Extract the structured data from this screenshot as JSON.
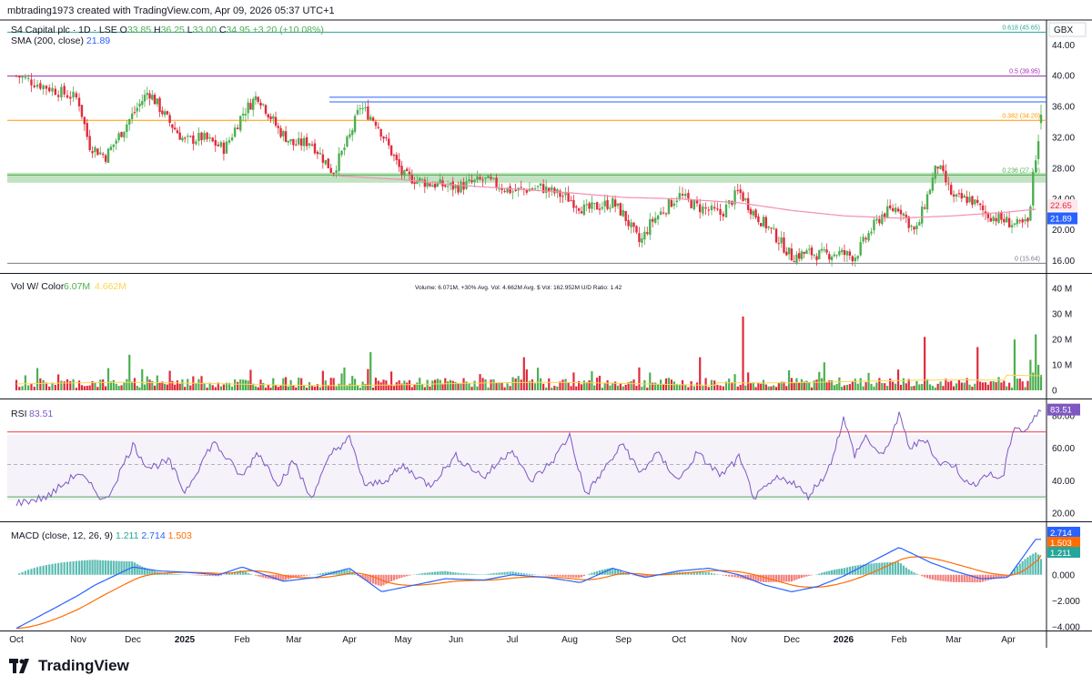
{
  "header": {
    "attribution": "mbtrading1973 created with TradingView.com, Apr 09, 2026 05:37 UTC+1"
  },
  "brand": {
    "logo_text": "TradingView"
  },
  "colors": {
    "up": "#4caf50",
    "down": "#e02b3b",
    "sma200": "#2962ff",
    "ema": "#f48fb1",
    "rsi": "#7e57c2",
    "macd": "#2962ff",
    "signal": "#ff6d00",
    "fib_0618": "#26a69a",
    "fib_05": "#9c27b0",
    "fib_0382": "#ff9800",
    "fib_0236": "#4caf50",
    "fib_0": "#787b86"
  },
  "price_pane": {
    "symbol_line": {
      "name": "S4 Capital plc · 1D · LSE",
      "o_label": "O",
      "o": "33.85",
      "h_label": "H",
      "h": "36.25",
      "l_label": "L",
      "l": "33.00",
      "c_label": "C",
      "c": "34.95",
      "change": "+3.20 (+10.08%)"
    },
    "sma_line": {
      "label": "SMA (200, close)",
      "value": "21.89"
    },
    "currency": "GBX",
    "y_ticks": [
      "44.00",
      "40.00",
      "36.00",
      "32.00",
      "28.00",
      "24.00",
      "20.00",
      "16.00"
    ],
    "badges": [
      {
        "text": "22.65",
        "kind": "ema"
      },
      {
        "text": "21.89",
        "kind": "sma"
      }
    ],
    "fib_labels": [
      {
        "text": "0.618 (45.65)",
        "level": 45.65,
        "color": "#26a69a"
      },
      {
        "text": "0.5 (39.95)",
        "level": 39.95,
        "color": "#9c27b0"
      },
      {
        "text": "0.382 (34.20)",
        "level": 34.2,
        "color": "#ff9800"
      },
      {
        "text": "0.236 (27.10)",
        "level": 27.1,
        "color": "#4caf50"
      },
      {
        "text": "0 (15.64)",
        "level": 15.64,
        "color": "#787b86"
      }
    ]
  },
  "volume_pane": {
    "label": "Vol W/ Color",
    "value1": "6.07M",
    "value2": "4.662M",
    "stats": "Volume: 6.071M, +30%   Avg. Vol: 4.662M   Avg. $ Vol: 162.952M   U/D Ratio: 1.42",
    "y_ticks": [
      "40 M",
      "30 M",
      "20 M",
      "10 M",
      "0"
    ]
  },
  "rsi_pane": {
    "label": "RSI",
    "value": "83.51",
    "y_ticks": [
      "80.00",
      "60.00",
      "40.00",
      "20.00"
    ]
  },
  "macd_pane": {
    "label": "MACD (close, 12, 26, 9)",
    "hist": "1.211",
    "macd": "2.714",
    "signal": "1.503",
    "y_ticks": [
      "2.000",
      "0.000",
      "−2.000",
      "−4.000"
    ]
  },
  "x_axis": {
    "labels": [
      "Oct",
      "Nov",
      "Dec",
      "2025",
      "Feb",
      "Mar",
      "Apr",
      "May",
      "Jun",
      "Jul",
      "Aug",
      "Sep",
      "Oct",
      "Nov",
      "Dec",
      "2026",
      "Feb",
      "Mar",
      "Apr"
    ],
    "bold": [
      "2025",
      "2026"
    ]
  },
  "chart_data": {
    "type": "candlestick",
    "title": "S4 Capital plc · 1D · LSE",
    "unit": "GBX",
    "ylim_price": [
      14.5,
      47
    ],
    "last": {
      "open": 33.85,
      "high": 36.25,
      "low": 33.0,
      "close": 34.95,
      "change": 3.2,
      "change_pct": 10.08
    },
    "sma200_anchors": {
      "x": [
        0,
        2,
        3,
        5,
        6,
        7,
        9,
        11,
        12,
        13,
        14,
        15,
        16,
        17,
        18,
        18.5
      ],
      "y": [
        45.5,
        44.8,
        44,
        42.2,
        40.5,
        37,
        32,
        29,
        28.3,
        27.5,
        26.5,
        24.5,
        22.5,
        22,
        21.8,
        21.89
      ]
    },
    "ema_anchors": {
      "x": [
        5.8,
        7,
        8,
        9,
        10,
        11,
        12,
        13,
        14,
        15,
        16,
        17,
        18,
        18.5
      ],
      "y": [
        27,
        26.5,
        25.8,
        25.3,
        24.8,
        24.2,
        24,
        23.5,
        22.5,
        21.8,
        21.5,
        21.8,
        22.3,
        22.65
      ]
    },
    "close_anchors": {
      "x": [
        0,
        0.5,
        1,
        1.2,
        1.5,
        2,
        2.3,
        2.7,
        3,
        3.3,
        3.7,
        4,
        4.3,
        4.7,
        5,
        5.3,
        5.7,
        6,
        6.2,
        6.5,
        7,
        7.5,
        8,
        8.5,
        9,
        9.5,
        10,
        10.3,
        10.5,
        10.8,
        11,
        11.3,
        11.5,
        12,
        12.3,
        12.7,
        13,
        13.3,
        13.6,
        14,
        14.3,
        14.6,
        14.9,
        15.2,
        15.5,
        15.7,
        16,
        16.3,
        16.7,
        17,
        17.3,
        17.6,
        18,
        18.2,
        18.4,
        18.6
      ],
      "y": [
        40,
        38.5,
        37,
        31,
        29.5,
        35,
        38,
        34,
        31.5,
        32,
        30.5,
        35,
        37.5,
        33,
        31,
        31.5,
        27.5,
        32,
        36,
        34,
        27,
        26,
        25.5,
        26.5,
        25,
        25.5,
        24,
        22.5,
        23,
        23.5,
        22,
        18.2,
        21,
        24.5,
        23,
        22,
        25,
        22,
        20,
        16.5,
        17,
        16.7,
        17,
        16.5,
        20,
        22,
        23,
        19.5,
        28.5,
        24,
        24,
        22,
        21,
        20.5,
        21,
        20
      ],
      "note": "last days: 23, 27.5, 29, 31.5, 34.95"
    },
    "rsi": {
      "anchors_x": [
        0,
        0.5,
        1,
        1.5,
        2,
        2.3,
        2.7,
        3,
        3.5,
        4,
        4.3,
        4.7,
        5,
        5.3,
        5.7,
        6,
        6.3,
        6.7,
        7,
        7.5,
        8,
        8.5,
        9,
        9.3,
        9.7,
        10,
        10.3,
        10.6,
        11,
        11.3,
        11.6,
        12,
        12.3,
        12.7,
        13,
        13.3,
        13.7,
        14,
        14.3,
        14.7,
        15,
        15.2,
        15.4,
        15.7,
        16,
        16.2,
        16.5,
        16.7,
        17,
        17.3,
        17.6,
        17.9,
        18.1,
        18.3,
        18.6
      ],
      "anchors_y": [
        26,
        30,
        45,
        27,
        62,
        48,
        52,
        33,
        64,
        42,
        58,
        38,
        52,
        29,
        58,
        66,
        36,
        41,
        49,
        37,
        55,
        42,
        60,
        39,
        52,
        68,
        31,
        45,
        63,
        44,
        57,
        40,
        57,
        43,
        54,
        29,
        41,
        40,
        30,
        46,
        78,
        56,
        67,
        54,
        80,
        60,
        66,
        51,
        50,
        36,
        44,
        41,
        74,
        70,
        83.51
      ],
      "overbought": 70,
      "oversold": 30,
      "mid": 50
    },
    "macd": {
      "macd_last": 2.714,
      "signal_last": 1.503,
      "hist_last": 1.211
    },
    "volume": {
      "last": "6.071M",
      "avg": "4.662M"
    }
  }
}
